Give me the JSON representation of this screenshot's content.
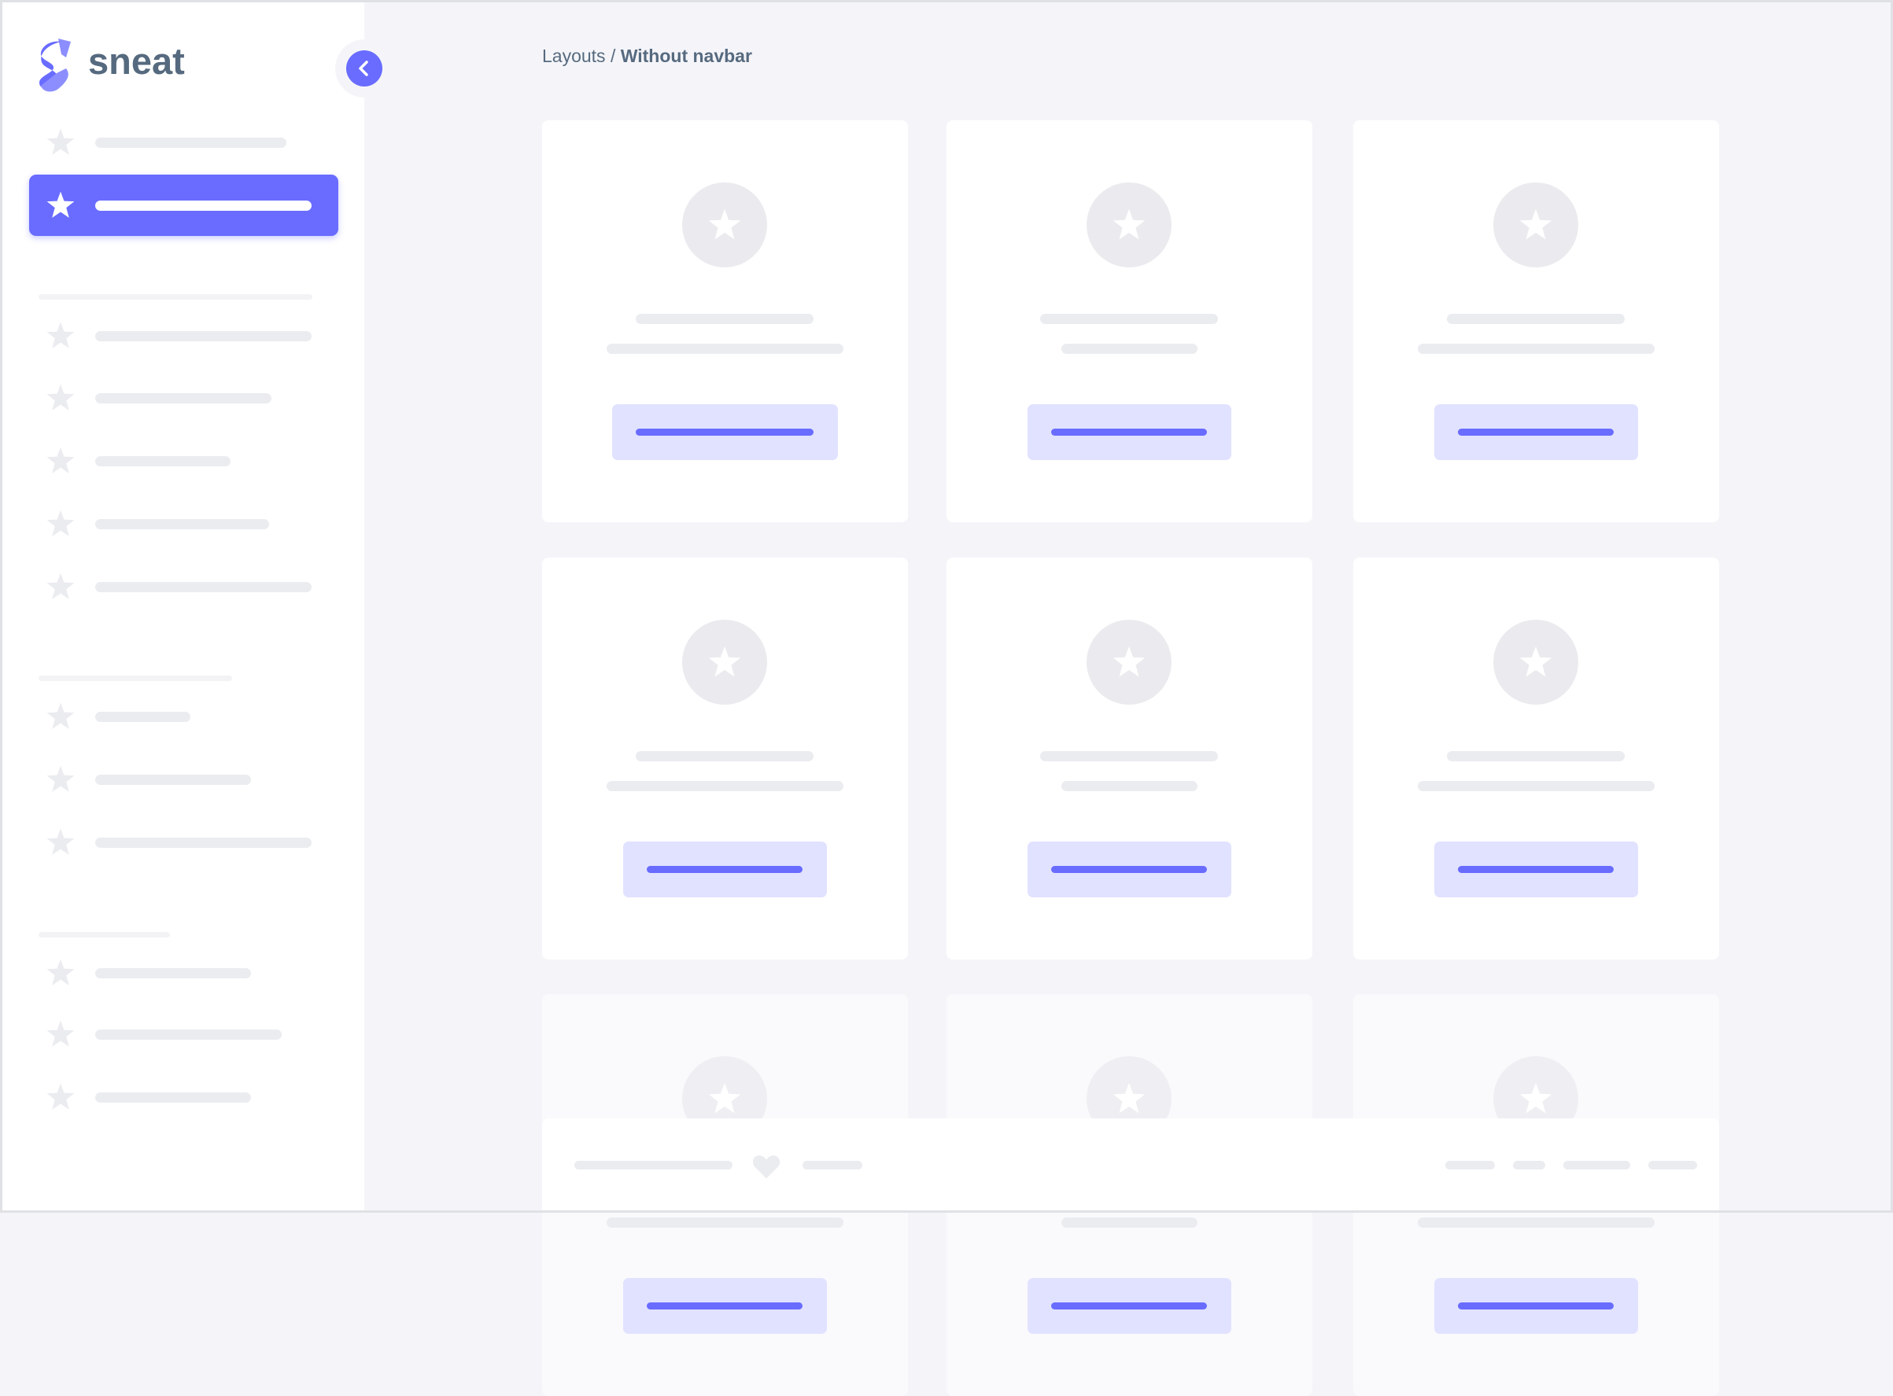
{
  "brand": {
    "name": "sneat",
    "accent": "#696cff"
  },
  "breadcrumb": {
    "parent": "Layouts",
    "separator": " / ",
    "current": "Without navbar"
  },
  "sidebar": {
    "active_index": 1,
    "item_count": 13,
    "icon": "star-icon"
  },
  "main": {
    "card_count": 9,
    "card_icon": "star-icon"
  },
  "footer": {
    "icon": "heart-icon"
  },
  "colors": {
    "accent": "#696cff",
    "accent_light": "#e1e2ff",
    "background": "#f5f5f9",
    "placeholder": "#ebecf0",
    "text": "#566a7f"
  }
}
